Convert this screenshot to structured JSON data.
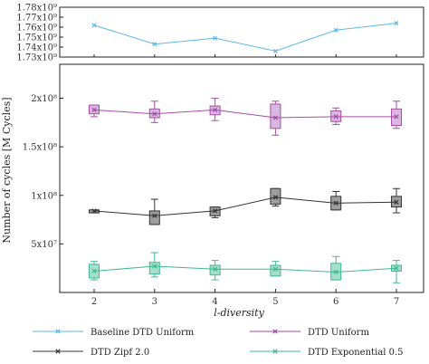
{
  "chart_data": {
    "type": "line",
    "xlabel": "l-diversity",
    "ylabel": "Number of cycles [M Cycles]",
    "categories": [
      2,
      3,
      4,
      5,
      6,
      7
    ],
    "top_panel": {
      "ylim": [
        1730000000,
        1780000000
      ],
      "yticks": [
        {
          "value": 1730000000,
          "label": "1.73x10⁹"
        },
        {
          "value": 1740000000,
          "label": "1.74x10⁹"
        },
        {
          "value": 1750000000,
          "label": "1.75x10⁹"
        },
        {
          "value": 1760000000,
          "label": "1.76x10⁹"
        },
        {
          "value": 1770000000,
          "label": "1.77x10⁹"
        },
        {
          "value": 1780000000,
          "label": "1.78x10⁹"
        }
      ],
      "series": [
        {
          "name": "Baseline DTD Uniform",
          "color": "#5bb7e8",
          "marker": "x",
          "values": [
            1762000000,
            1743000000,
            1749000000,
            1736000000,
            1757000000,
            1764000000
          ]
        }
      ]
    },
    "bottom_panel": {
      "ylim": [
        0,
        235000000
      ],
      "yticks": [
        {
          "value": 50000000,
          "label": "5x10⁷"
        },
        {
          "value": 100000000,
          "label": "1x10⁸"
        },
        {
          "value": 150000000,
          "label": "1.5x10⁸"
        },
        {
          "value": 200000000,
          "label": "2x10⁸"
        }
      ],
      "series": [
        {
          "name": "DTD Uniform",
          "color": "#a64ca6",
          "fill": "#d8b8e0",
          "marker": "x",
          "values": [
            188000000,
            184000000,
            188000000,
            180000000,
            181000000,
            181000000
          ],
          "boxes": [
            {
              "q1": 184000000,
              "q3": 193000000,
              "low": 181000000,
              "high": 193000000
            },
            {
              "q1": 180000000,
              "q3": 189000000,
              "low": 175000000,
              "high": 197000000
            },
            {
              "q1": 183000000,
              "q3": 192000000,
              "low": 177000000,
              "high": 200000000
            },
            {
              "q1": 169000000,
              "q3": 194000000,
              "low": 162000000,
              "high": 197000000
            },
            {
              "q1": 176000000,
              "q3": 187000000,
              "low": 173000000,
              "high": 190000000
            },
            {
              "q1": 172000000,
              "q3": 189000000,
              "low": 169000000,
              "high": 197000000
            }
          ]
        },
        {
          "name": "DTD Zipf 2.0",
          "color": "#333333",
          "fill": "#9e9e9e",
          "marker": "x",
          "values": [
            84000000,
            79000000,
            84000000,
            98000000,
            92000000,
            93000000
          ],
          "boxes": [
            {
              "q1": 82000000,
              "q3": 85000000,
              "low": 82000000,
              "high": 85000000
            },
            {
              "q1": 70000000,
              "q3": 84000000,
              "low": 70000000,
              "high": 96000000
            },
            {
              "q1": 79000000,
              "q3": 88000000,
              "low": 77000000,
              "high": 88000000
            },
            {
              "q1": 91000000,
              "q3": 107000000,
              "low": 89000000,
              "high": 107000000
            },
            {
              "q1": 85000000,
              "q3": 99000000,
              "low": 85000000,
              "high": 104000000
            },
            {
              "q1": 88000000,
              "q3": 99000000,
              "low": 82000000,
              "high": 107000000
            }
          ]
        },
        {
          "name": "DTD Exponential 0.5",
          "color": "#3fb890",
          "fill": "#a6e0cc",
          "marker": "x",
          "values": [
            22000000,
            27000000,
            24000000,
            24000000,
            21000000,
            25000000
          ],
          "boxes": [
            {
              "q1": 15000000,
              "q3": 29000000,
              "low": 13000000,
              "high": 32000000
            },
            {
              "q1": 19000000,
              "q3": 31000000,
              "low": 16000000,
              "high": 41000000
            },
            {
              "q1": 18000000,
              "q3": 28000000,
              "low": 13000000,
              "high": 33000000
            },
            {
              "q1": 17000000,
              "q3": 28000000,
              "low": 17000000,
              "high": 32000000
            },
            {
              "q1": 13000000,
              "q3": 30000000,
              "low": 13000000,
              "high": 37000000
            },
            {
              "q1": 22000000,
              "q3": 28000000,
              "low": 10000000,
              "high": 33000000
            }
          ]
        }
      ]
    },
    "legend": {
      "placement": "bottom",
      "entries": [
        {
          "name": "Baseline DTD Uniform",
          "color": "#5bb7e8"
        },
        {
          "name": "DTD Uniform",
          "color": "#a64ca6"
        },
        {
          "name": "DTD Zipf 2.0",
          "color": "#333333"
        },
        {
          "name": "DTD Exponential 0.5",
          "color": "#3fb890"
        }
      ]
    }
  }
}
